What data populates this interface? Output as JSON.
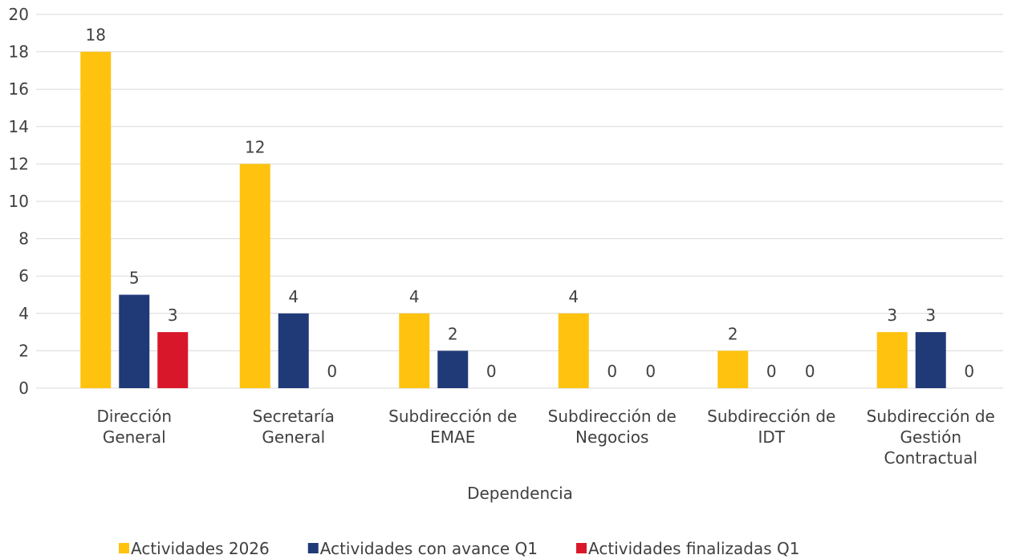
{
  "chart_data": {
    "type": "bar",
    "x_label": "Dependencia",
    "categories": [
      "Dirección General",
      "Secretaría General",
      "Subdirección de EMAE",
      "Subdirección de Negocios",
      "Subdirección de IDT",
      "Subdirección de Gestión Contractual"
    ],
    "series": [
      {
        "name": "Actividades 2026",
        "color": "#FFC20E",
        "values": [
          18,
          12,
          4,
          4,
          2,
          3
        ]
      },
      {
        "name": "Actividades con avance Q1",
        "color": "#203A78",
        "values": [
          5,
          4,
          2,
          0,
          0,
          3
        ]
      },
      {
        "name": "Actividades finalizadas Q1",
        "color": "#D9172A",
        "values": [
          3,
          0,
          0,
          0,
          0,
          0
        ]
      }
    ],
    "ylim": [
      0,
      20
    ],
    "yticks": [
      0,
      2,
      4,
      6,
      8,
      10,
      12,
      14,
      16,
      18,
      20
    ],
    "grid": true,
    "legend": "bottom"
  }
}
